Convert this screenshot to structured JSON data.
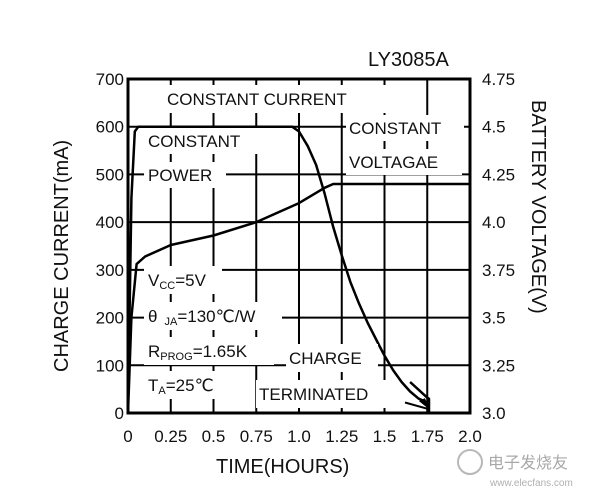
{
  "chart_data": {
    "type": "line",
    "title": "LY3085A",
    "xlabel": "TIME(HOURS)",
    "ylabel_left": "CHARGE CURRENT(mA)",
    "ylabel_right": "BATTERY VOLTAGE(V)",
    "xlim": [
      0,
      2.0
    ],
    "ylim_left": [
      0,
      700
    ],
    "ylim_right": [
      3.0,
      4.75
    ],
    "x_ticks": [
      "0",
      "0.25",
      "0.5",
      "0.75",
      "1.0",
      "1.25",
      "1.5",
      "1.75",
      "2.0"
    ],
    "y_left_ticks": [
      "0",
      "100",
      "200",
      "300",
      "400",
      "500",
      "600",
      "700"
    ],
    "y_right_ticks": [
      "3.0",
      "3.25",
      "3.5",
      "3.75",
      "4.0",
      "4.25",
      "4.5",
      "4.75"
    ],
    "grid": true,
    "series": [
      {
        "axis": "left",
        "x": [
          0,
          0.02,
          0.04,
          0.06,
          0.5,
          0.8,
          0.96,
          1.0,
          1.05,
          1.1,
          1.15,
          1.2,
          1.25,
          1.3,
          1.35,
          1.4,
          1.45,
          1.5,
          1.55,
          1.6,
          1.65,
          1.7,
          1.75,
          1.76
        ],
        "y": [
          0,
          450,
          590,
          600,
          600,
          600,
          600,
          590,
          560,
          520,
          460,
          390,
          330,
          275,
          230,
          190,
          155,
          120,
          90,
          65,
          45,
          30,
          22,
          20
        ]
      },
      {
        "axis": "right",
        "x": [
          0,
          0.02,
          0.05,
          0.1,
          0.25,
          0.5,
          0.75,
          1.0,
          1.15,
          1.2,
          1.25,
          1.5,
          1.75,
          2.0
        ],
        "y": [
          3.0,
          3.5,
          3.78,
          3.82,
          3.88,
          3.93,
          4.0,
          4.1,
          4.18,
          4.2,
          4.2,
          4.2,
          4.2,
          4.2
        ]
      },
      {
        "axis": "left",
        "x": [
          1.65,
          1.75,
          1.76,
          1.76
        ],
        "y": [
          65,
          32,
          30,
          0
        ]
      }
    ],
    "annotations": {
      "constant_current": "CONSTANT CURRENT",
      "constant_power_1": "CONSTANT",
      "constant_power_2": "POWER",
      "constant_voltage_1": "CONSTANT",
      "constant_voltage_2": "VOLTAGAE",
      "charge_1": "CHARGE",
      "charge_2": "TERMINATED",
      "vcc_main": "V",
      "vcc_sub": "CC",
      "vcc_val": "=5V",
      "theta_main": "θ",
      "theta_sub": "JA",
      "theta_val": "=130℃/W",
      "rprog_main": "R",
      "rprog_sub": "PROG",
      "rprog_val": "=1.65K",
      "ta_main": "T",
      "ta_sub": "A",
      "ta_val": "=25℃"
    }
  },
  "watermark": "电子发烧友",
  "watermark_url": "www.elecfans.com"
}
